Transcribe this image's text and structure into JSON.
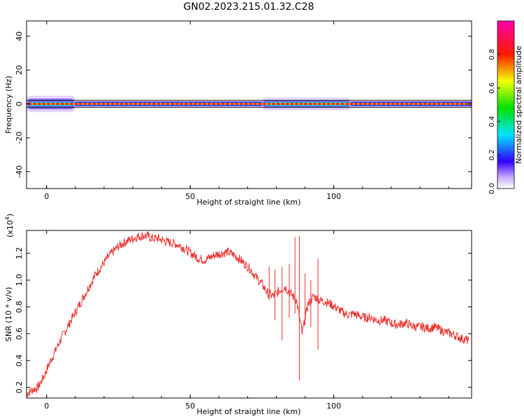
{
  "figure": {
    "title": "GN02.2023.215.01.32.C28"
  },
  "chart_data": [
    {
      "type": "heatmap",
      "title": "GN02.2023.215.01.32.C28",
      "xlabel": "Height of straight line (km)",
      "ylabel": "Frequency (Hz)",
      "xlim": [
        -7,
        148
      ],
      "ylim": [
        -50,
        49
      ],
      "x_ticks": [
        0,
        50,
        100
      ],
      "x_tick_labels": [
        "0",
        "50",
        "100"
      ],
      "y_ticks": [
        -40,
        -20,
        0,
        20,
        40
      ],
      "y_tick_labels": [
        "-40",
        "-20",
        "0",
        "20",
        "40"
      ],
      "colorbar": {
        "label": "Normalized spectral amplitude",
        "range": [
          0,
          1
        ],
        "ticks": [
          0.0,
          0.2,
          0.4,
          0.6,
          0.8
        ],
        "tick_labels": [
          "0.0",
          "0.2",
          "0.4",
          "0.6",
          "0.8"
        ],
        "colormap": "rainbow (white → violet → blue → cyan → green → yellow → red → magenta)"
      },
      "grid": false,
      "description_values": {
        "dominant_frequency_hz": 0,
        "spread_regions": [
          {
            "x_range": [
              -7,
              10
            ],
            "half_width_hz": 4
          },
          {
            "x_range": [
              75,
              106
            ],
            "half_width_hz": 3
          }
        ],
        "baseline_half_width_hz": 1
      }
    },
    {
      "type": "line",
      "title": "",
      "xlabel": "Height of straight line (km)",
      "ylabel": "SNR (10 * v/v)",
      "y_multiplier_label": "(x10",
      "y_multiplier_exponent": "4",
      "y_multiplier_close": ")",
      "xlim": [
        -7,
        148
      ],
      "ylim": [
        0.12,
        1.37
      ],
      "x_ticks": [
        0,
        50,
        100
      ],
      "x_tick_labels": [
        "0",
        "50",
        "100"
      ],
      "y_ticks": [
        0.2,
        0.4,
        0.6,
        0.8,
        1.0,
        1.2
      ],
      "y_tick_labels": [
        "0.2",
        "0.4",
        "0.6",
        "0.8",
        "1.0",
        "1.2"
      ],
      "grid": false,
      "color": "#e8322e",
      "series": [
        {
          "x": [
            -7,
            -5,
            -3,
            -1,
            1,
            3,
            5,
            7,
            9,
            11,
            13,
            15,
            17,
            19,
            21,
            23,
            25,
            27,
            29,
            31,
            33,
            35,
            37,
            39,
            41,
            43,
            45,
            47,
            49,
            51,
            53,
            55,
            57,
            59,
            61,
            63,
            65,
            67,
            69,
            71,
            73,
            75,
            77,
            79,
            81,
            83,
            85,
            87,
            89,
            91,
            93,
            95,
            97,
            99,
            101,
            103,
            105,
            107,
            109,
            111,
            113,
            115,
            117,
            119,
            121,
            123,
            125,
            127,
            129,
            131,
            133,
            135,
            137,
            139,
            141,
            143,
            145,
            147
          ],
          "y": [
            0.15,
            0.18,
            0.2,
            0.28,
            0.38,
            0.47,
            0.56,
            0.64,
            0.72,
            0.8,
            0.88,
            0.96,
            1.04,
            1.1,
            1.16,
            1.21,
            1.25,
            1.28,
            1.3,
            1.32,
            1.33,
            1.33,
            1.31,
            1.31,
            1.29,
            1.28,
            1.27,
            1.25,
            1.22,
            1.19,
            1.16,
            1.15,
            1.17,
            1.19,
            1.2,
            1.21,
            1.19,
            1.16,
            1.12,
            1.08,
            1.02,
            0.97,
            0.9,
            0.88,
            0.92,
            0.95,
            0.9,
            0.85,
            0.6,
            0.82,
            0.88,
            0.85,
            0.84,
            0.82,
            0.79,
            0.76,
            0.74,
            0.75,
            0.73,
            0.72,
            0.72,
            0.7,
            0.7,
            0.69,
            0.67,
            0.67,
            0.68,
            0.66,
            0.65,
            0.65,
            0.64,
            0.65,
            0.63,
            0.61,
            0.6,
            0.58,
            0.56,
            0.55
          ]
        }
      ],
      "spikes": [
        {
          "x": 77.5,
          "y_low": 0.85,
          "y_high": 1.1
        },
        {
          "x": 79.5,
          "y_low": 0.7,
          "y_high": 1.08
        },
        {
          "x": 82,
          "y_low": 0.55,
          "y_high": 1.1
        },
        {
          "x": 84.5,
          "y_low": 0.72,
          "y_high": 1.12
        },
        {
          "x": 86.5,
          "y_low": 0.75,
          "y_high": 1.32
        },
        {
          "x": 88,
          "y_low": 0.25,
          "y_high": 1.33
        },
        {
          "x": 90,
          "y_low": 0.7,
          "y_high": 1.05
        },
        {
          "x": 92,
          "y_low": 0.65,
          "y_high": 1.0
        },
        {
          "x": 94.5,
          "y_low": 0.48,
          "y_high": 1.16
        }
      ]
    }
  ]
}
